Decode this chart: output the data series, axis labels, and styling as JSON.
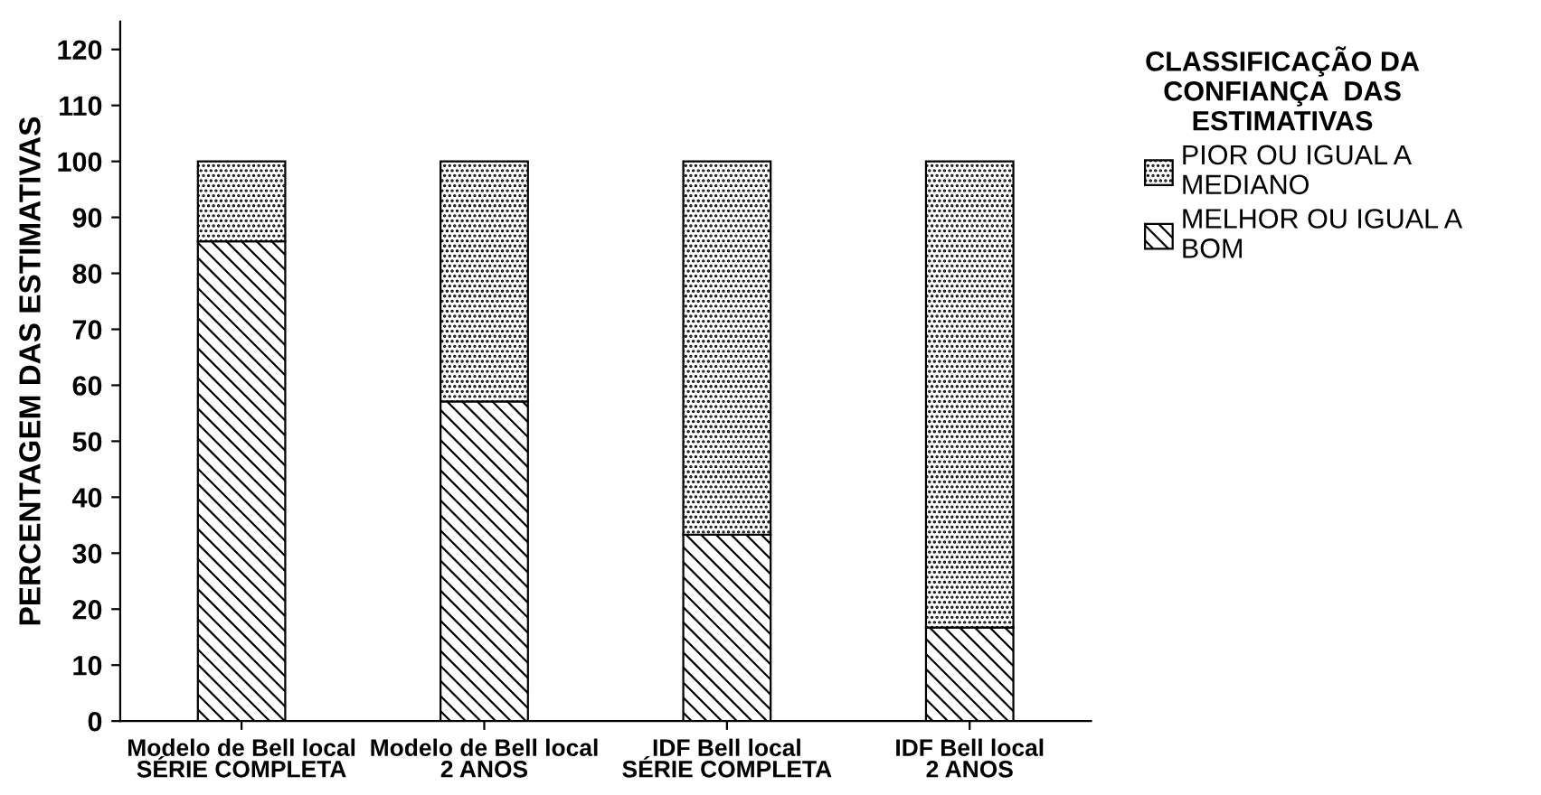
{
  "chart_data": {
    "type": "bar",
    "stacked": true,
    "categories": [
      "Modelo de Bell local\nSÉRIE COMPLETA",
      "Modelo de Bell local\n2 ANOS",
      "IDF Bell local\nSÉRIE COMPLETA",
      "IDF Bell local\n2 ANOS"
    ],
    "ylabel": "PERCENTAGEM DAS ESTIMATIVAS",
    "legend_title": "CLASSIFICAÇÃO DA\nCONFIANÇA  DAS\nESTIMATIVAS",
    "series": [
      {
        "name": "MELHOR OU IGUAL A\nBOM",
        "color": "#000000",
        "values": [
          85.7,
          57.1,
          33.3,
          16.7
        ]
      },
      {
        "name": "PIOR OU IGUAL A\nMEDIANO",
        "color": "#000000",
        "values": [
          14.3,
          42.9,
          66.7,
          83.3
        ]
      }
    ],
    "ylim": [
      0,
      125
    ],
    "yticks": [
      0,
      10,
      20,
      30,
      40,
      50,
      60,
      70,
      80,
      90,
      100,
      110,
      120
    ],
    "legend": "right"
  }
}
